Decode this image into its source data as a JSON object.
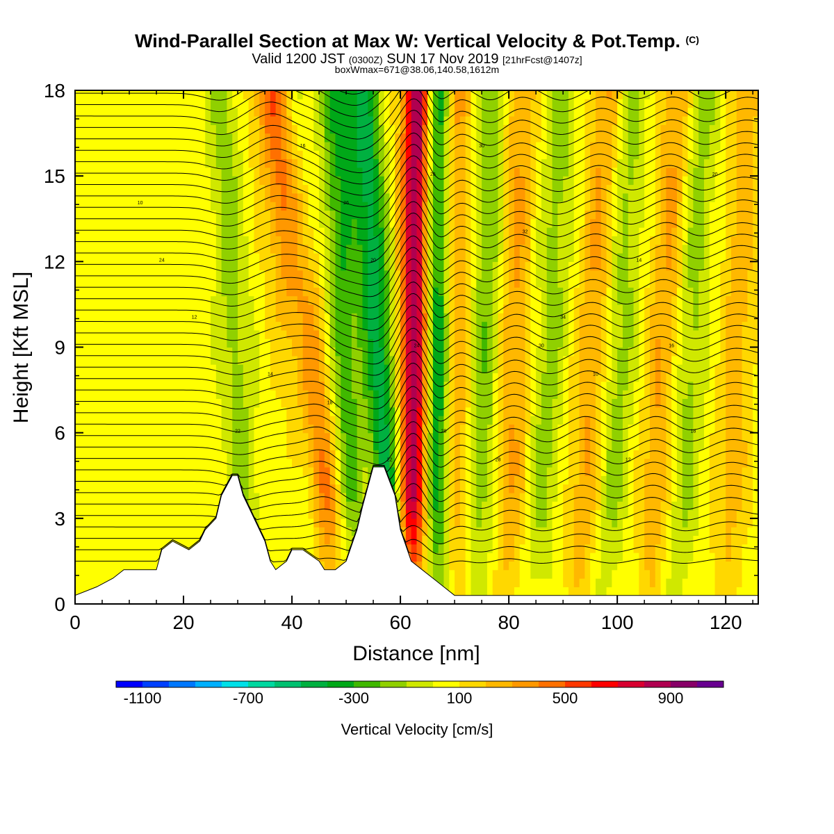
{
  "title": {
    "main": "Wind-Parallel Section at Max W: Vertical Velocity & Pot.Temp.",
    "copyright": "(C)",
    "valid_prefix": "Valid 1200 JST",
    "valid_zulu": "(0300Z)",
    "valid_date": "SUN 17 Nov 2019",
    "forecast": "[21hrFcst@1407z]",
    "boxmax": "boxWmax=671@38.06,140.58,1612m"
  },
  "chart_data": {
    "type": "heatmap",
    "xlabel": "Distance [nm]",
    "ylabel": "Height [Kft MSL]",
    "xlim": [
      0,
      126
    ],
    "ylim": [
      0,
      18
    ],
    "x_ticks": [
      0,
      20,
      40,
      60,
      80,
      100,
      120
    ],
    "y_ticks": [
      0,
      3,
      6,
      9,
      12,
      15,
      18
    ],
    "colorbar": {
      "label": "Vertical Velocity [cm/s]",
      "tick_labels": [
        "-1100",
        "-700",
        "-300",
        "100",
        "500",
        "900"
      ],
      "tick_values": [
        -1100,
        -700,
        -300,
        100,
        500,
        900
      ],
      "range": [
        -1200,
        1100
      ],
      "colors": [
        "#0000ff",
        "#0040ff",
        "#0078ff",
        "#00b0ff",
        "#00e0e8",
        "#00d8a0",
        "#00c070",
        "#00b040",
        "#00a818",
        "#40b800",
        "#90d000",
        "#d0e800",
        "#ffff00",
        "#ffd800",
        "#ffb800",
        "#ff9800",
        "#ff7000",
        "#ff3800",
        "#ff0000",
        "#d80030",
        "#b00050",
        "#880068",
        "#680090"
      ]
    },
    "max_w": {
      "value": 671,
      "units": "cm/s",
      "lat": 38.06,
      "lon": 140.58,
      "height_m": 1612
    },
    "terrain_profile": {
      "x": [
        0,
        4,
        7,
        9,
        12,
        15,
        16,
        18,
        21,
        23,
        24,
        26,
        27,
        29,
        30,
        31,
        32,
        33,
        35,
        36,
        37,
        39,
        40,
        42,
        45,
        46,
        48,
        50,
        52,
        53,
        55,
        57,
        59,
        60,
        62,
        64,
        66,
        68,
        70,
        126
      ],
      "height_kft": [
        0.3,
        0.6,
        0.9,
        1.2,
        1.2,
        1.2,
        1.9,
        2.2,
        1.9,
        2.2,
        2.6,
        3.0,
        3.8,
        4.5,
        4.5,
        3.8,
        3.4,
        3.0,
        2.2,
        1.5,
        1.2,
        1.5,
        1.9,
        1.9,
        1.5,
        1.2,
        1.2,
        1.5,
        2.6,
        3.4,
        4.8,
        4.8,
        3.8,
        2.6,
        1.5,
        1.2,
        0.9,
        0.6,
        0.3,
        0.3
      ]
    },
    "w_features": [
      {
        "x_base": 48,
        "x_top": 37,
        "w_cms": 500,
        "width_nm": 4
      },
      {
        "x_base": 51,
        "x_top": 48,
        "w_cms": -350,
        "width_nm": 3
      },
      {
        "x_base": 59,
        "x_top": 53,
        "w_cms": -500,
        "width_nm": 3
      },
      {
        "x_base": 62,
        "x_top": 63,
        "w_cms": 850,
        "width_nm": 2.6
      },
      {
        "x_base": 67,
        "x_top": 67,
        "w_cms": -550,
        "width_nm": 2.4
      },
      {
        "x_base": 70,
        "x_top": 70,
        "w_cms": 300,
        "width_nm": 3
      },
      {
        "x_base": 32,
        "x_top": 27,
        "w_cms": -200,
        "width_nm": 3
      },
      {
        "x_base": 44,
        "x_top": 40,
        "w_cms": -250,
        "width_nm": 3
      },
      {
        "x_base": 74,
        "x_top": 77,
        "w_cms": -250,
        "width_nm": 3
      },
      {
        "x_base": 80,
        "x_top": 82,
        "w_cms": 250,
        "width_nm": 3
      },
      {
        "x_base": 85,
        "x_top": 90,
        "w_cms": -200,
        "width_nm": 3
      },
      {
        "x_base": 93,
        "x_top": 98,
        "w_cms": 250,
        "width_nm": 3
      },
      {
        "x_base": 98,
        "x_top": 103,
        "w_cms": -200,
        "width_nm": 3
      },
      {
        "x_base": 106,
        "x_top": 111,
        "w_cms": 250,
        "width_nm": 3
      },
      {
        "x_base": 111,
        "x_top": 116,
        "w_cms": -200,
        "width_nm": 3
      },
      {
        "x_base": 120,
        "x_top": 124,
        "w_cms": 200,
        "width_nm": 3
      }
    ],
    "theta_contours": {
      "units": "C",
      "interval": 2,
      "labels_visible": [
        "10",
        "12",
        "14",
        "16",
        "18",
        "20",
        "22",
        "24",
        "26",
        "28",
        "30",
        "32",
        "34"
      ]
    }
  }
}
